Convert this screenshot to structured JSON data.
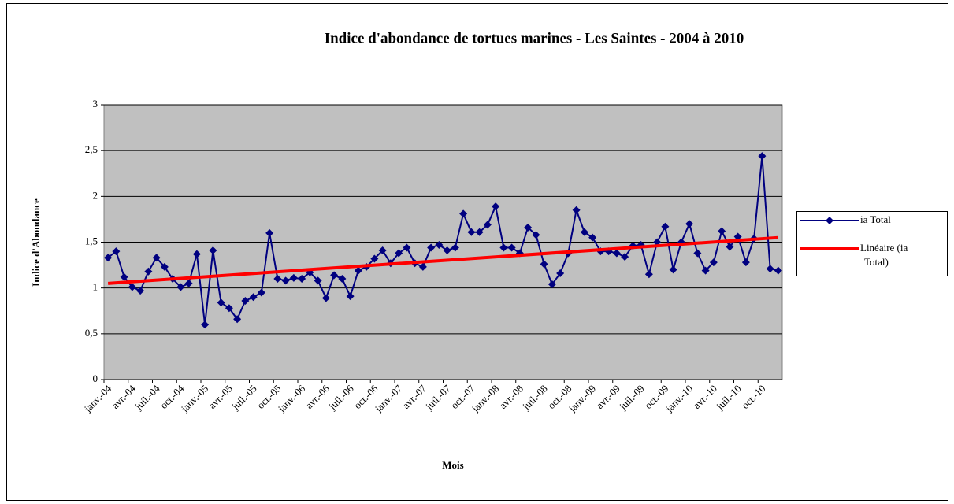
{
  "chart_data": {
    "type": "line",
    "title": "Indice d'abondance de tortues marines - Les Saintes - 2004 à 2010",
    "x_label": "Mois",
    "y_label": "Indice d'Abondance",
    "categories": [
      "janv.-04",
      null,
      null,
      "avr.-04",
      null,
      null,
      "juil.-04",
      null,
      null,
      "oct.-04",
      null,
      null,
      "janv.-05",
      null,
      null,
      "avr.-05",
      null,
      null,
      "juil.-05",
      null,
      null,
      "oct.-05",
      null,
      null,
      "janv.-06",
      null,
      null,
      "avr.-06",
      null,
      null,
      "juil.-06",
      null,
      null,
      "oct.-06",
      null,
      null,
      "janv.-07",
      null,
      null,
      "avr.-07",
      null,
      null,
      "juil.-07",
      null,
      null,
      "oct.-07",
      null,
      null,
      "janv.-08",
      null,
      null,
      "avr.-08",
      null,
      null,
      "juil.-08",
      null,
      null,
      "oct.-08",
      null,
      null,
      "janv.-09",
      null,
      null,
      "avr.-09",
      null,
      null,
      "juil.-09",
      null,
      null,
      "oct.-09",
      null,
      null,
      "janv.-10",
      null,
      null,
      "avr.-10",
      null,
      null,
      "juil.-10",
      null,
      null,
      "oct.-10",
      null,
      null
    ],
    "series": [
      {
        "name": "ia Total",
        "color": "#000080",
        "values": [
          1.33,
          1.4,
          1.12,
          1.01,
          0.97,
          1.18,
          1.33,
          1.23,
          1.1,
          1.01,
          1.05,
          1.37,
          0.6,
          1.41,
          0.84,
          0.78,
          0.66,
          0.86,
          0.9,
          0.95,
          1.6,
          1.1,
          1.08,
          1.11,
          1.1,
          1.17,
          1.08,
          0.89,
          1.14,
          1.1,
          0.91,
          1.19,
          1.23,
          1.32,
          1.41,
          1.27,
          1.38,
          1.44,
          1.27,
          1.23,
          1.44,
          1.47,
          1.41,
          1.44,
          1.81,
          1.61,
          1.61,
          1.69,
          1.89,
          1.44,
          1.44,
          1.38,
          1.66,
          1.58,
          1.26,
          1.04,
          1.16,
          1.38,
          1.85,
          1.61,
          1.55,
          1.4,
          1.4,
          1.38,
          1.34,
          1.46,
          1.47,
          1.15,
          1.5,
          1.67,
          1.2,
          1.5,
          1.7,
          1.38,
          1.19,
          1.28,
          1.62,
          1.45,
          1.56,
          1.28,
          1.54,
          2.44,
          1.21,
          1.19
        ]
      }
    ],
    "trendline": {
      "name": "Linéaire (ia Total)",
      "color": "#ff0000",
      "values": [
        1.05,
        1.55
      ]
    },
    "ylim": [
      0,
      3
    ],
    "yticks": [
      0,
      {
        "value": 0.5,
        "label": "0,5"
      },
      1,
      {
        "value": 1.5,
        "label": "1,5"
      },
      2,
      {
        "value": 2.5,
        "label": "2,5"
      },
      3
    ],
    "grid": true
  }
}
